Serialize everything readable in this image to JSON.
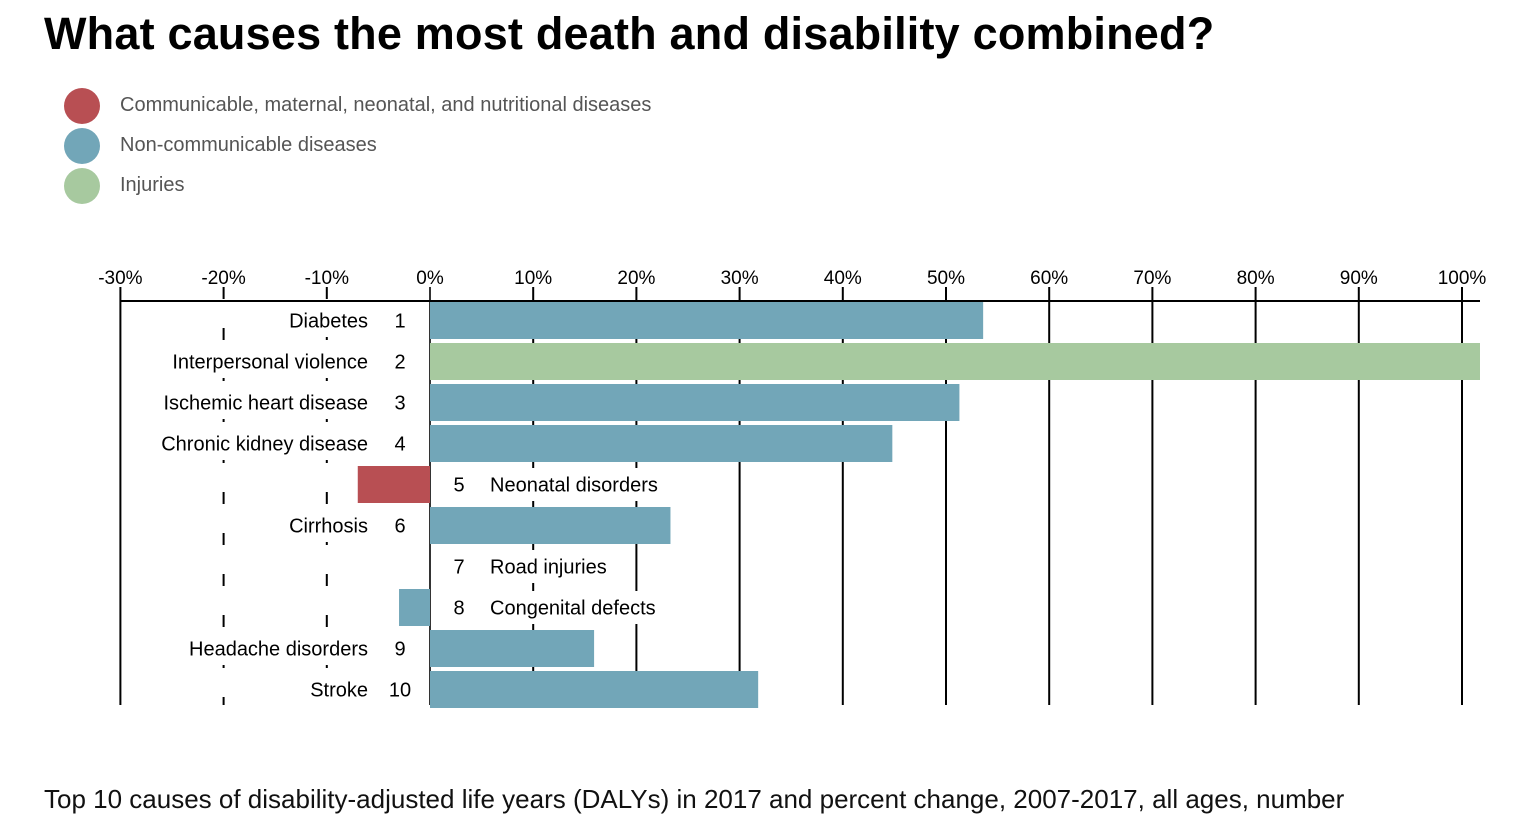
{
  "title": "What causes the most death and disability combined?",
  "subtitle": "Top 10 causes of disability-adjusted life years (DALYs) in 2017 and percent change, 2007-2017, all ages, number",
  "legend": [
    {
      "label": "Communicable, maternal, neonatal, and nutritional diseases",
      "color": "#b84f53"
    },
    {
      "label": "Non-communicable diseases",
      "color": "#72a6b8"
    },
    {
      "label": "Injuries",
      "color": "#a7c99f"
    }
  ],
  "chart_data": {
    "type": "bar",
    "orientation": "horizontal",
    "x_ticks": [
      "-30%",
      "-20%",
      "-10%",
      "0%",
      "10%",
      "20%",
      "30%",
      "40%",
      "50%",
      "60%",
      "70%",
      "80%",
      "90%",
      "100%"
    ],
    "xlim": [
      -30,
      100
    ],
    "grid": true,
    "rows": [
      {
        "rank": "1",
        "cause": "Diabetes",
        "value": 53.6,
        "group": "Non-communicable diseases",
        "color": "#72a6b8"
      },
      {
        "rank": "2",
        "cause": "Interpersonal violence",
        "value": 102,
        "group": "Injuries",
        "color": "#a7c99f"
      },
      {
        "rank": "3",
        "cause": "Ischemic heart disease",
        "value": 51.3,
        "group": "Non-communicable diseases",
        "color": "#72a6b8"
      },
      {
        "rank": "4",
        "cause": "Chronic kidney disease",
        "value": 44.8,
        "group": "Non-communicable diseases",
        "color": "#72a6b8"
      },
      {
        "rank": "5",
        "cause": "Neonatal disorders",
        "value": -7,
        "group": "Communicable, maternal, neonatal, and nutritional diseases",
        "color": "#b84f53"
      },
      {
        "rank": "6",
        "cause": "Cirrhosis",
        "value": 23.3,
        "group": "Non-communicable diseases",
        "color": "#72a6b8"
      },
      {
        "rank": "7",
        "cause": "Road injuries",
        "value": 0,
        "group": "Injuries",
        "color": "#a7c99f"
      },
      {
        "rank": "8",
        "cause": "Congenital defects",
        "value": -3,
        "group": "Non-communicable diseases",
        "color": "#72a6b8"
      },
      {
        "rank": "9",
        "cause": "Headache disorders",
        "value": 15.9,
        "group": "Non-communicable diseases",
        "color": "#72a6b8"
      },
      {
        "rank": "10",
        "cause": "Stroke",
        "value": 31.8,
        "group": "Non-communicable diseases",
        "color": "#72a6b8"
      }
    ]
  }
}
